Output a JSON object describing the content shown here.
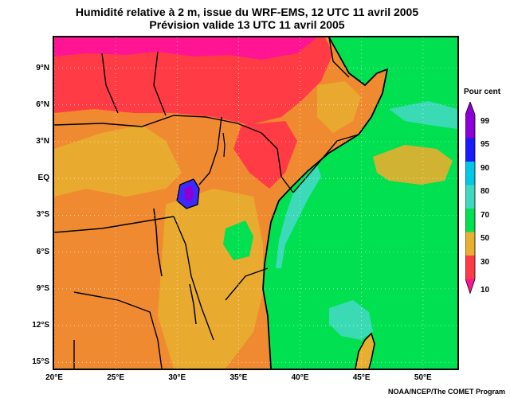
{
  "title": {
    "line1": "Humidité relative à 2 m, issue du WRF-EMS, 12 UTC 11 avril 2005",
    "line2": "Prévision valide 13 UTC 11 avril 2005"
  },
  "axes": {
    "lat_labels": [
      "9°N",
      "6°N",
      "3°N",
      "EQ",
      "3°S",
      "6°S",
      "9°S",
      "12°S",
      "15°S"
    ],
    "lat_values": [
      9,
      6,
      3,
      0,
      -3,
      -6,
      -9,
      -12,
      -15
    ],
    "lon_labels": [
      "20°E",
      "25°E",
      "30°E",
      "35°E",
      "40°E",
      "45°E",
      "50°E"
    ],
    "lon_values": [
      20,
      25,
      30,
      35,
      40,
      45,
      50
    ],
    "lon_range": [
      20,
      52.8
    ],
    "lat_range": [
      -15.5,
      11.5
    ]
  },
  "legend": {
    "title": "Pour cent",
    "ticks": [
      "99",
      "95",
      "90",
      "80",
      "70",
      "50",
      "30",
      "10"
    ],
    "colors": [
      "#8b00d8",
      "#1a1aff",
      "#00c8e6",
      "#40d9c0",
      "#00e050",
      "#e8b030",
      "#f08030",
      "#ff3c46",
      "#ff1493"
    ]
  },
  "colors": {
    "ocean_green": "#00e050",
    "land_orange": "#f08a30",
    "land_yellow": "#e8ae30",
    "dry_red": "#ff3c46",
    "very_dry_pink": "#ff1493",
    "coast_cyan": "#40d9c0",
    "lake_blue": "#3a2aff",
    "lake_purple": "#8b00d8"
  },
  "credit": "NOAA/NCEP/The COMET Program"
}
